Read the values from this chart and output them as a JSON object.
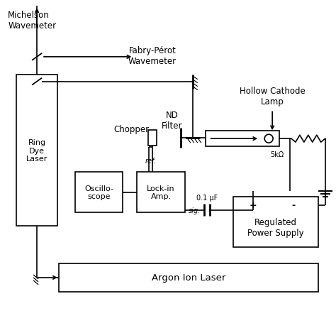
{
  "bg_color": "#ffffff",
  "fig_width": 4.74,
  "fig_height": 4.39,
  "dpi": 100,
  "labels": {
    "michelson": "Michelson\nWavemeter",
    "fabry": "Fabry-Pérot\nWavemeter",
    "hollow": "Hollow Cathode\nLamp",
    "nd": "ND\nFilter",
    "chopper": "Chopper",
    "ring": "Ring\nDye\nLaser",
    "oscilloscope": "Oscillo-\nscope",
    "lockin": "Lock-in\nAmp.",
    "ref": "ref.",
    "sig": "sig.",
    "capacitor": "0.1 μF",
    "resistor": "5kΩ",
    "power": "Regulated\nPower Supply",
    "argon": "Argon Ion Laser",
    "plus": "+",
    "minus": "-"
  }
}
